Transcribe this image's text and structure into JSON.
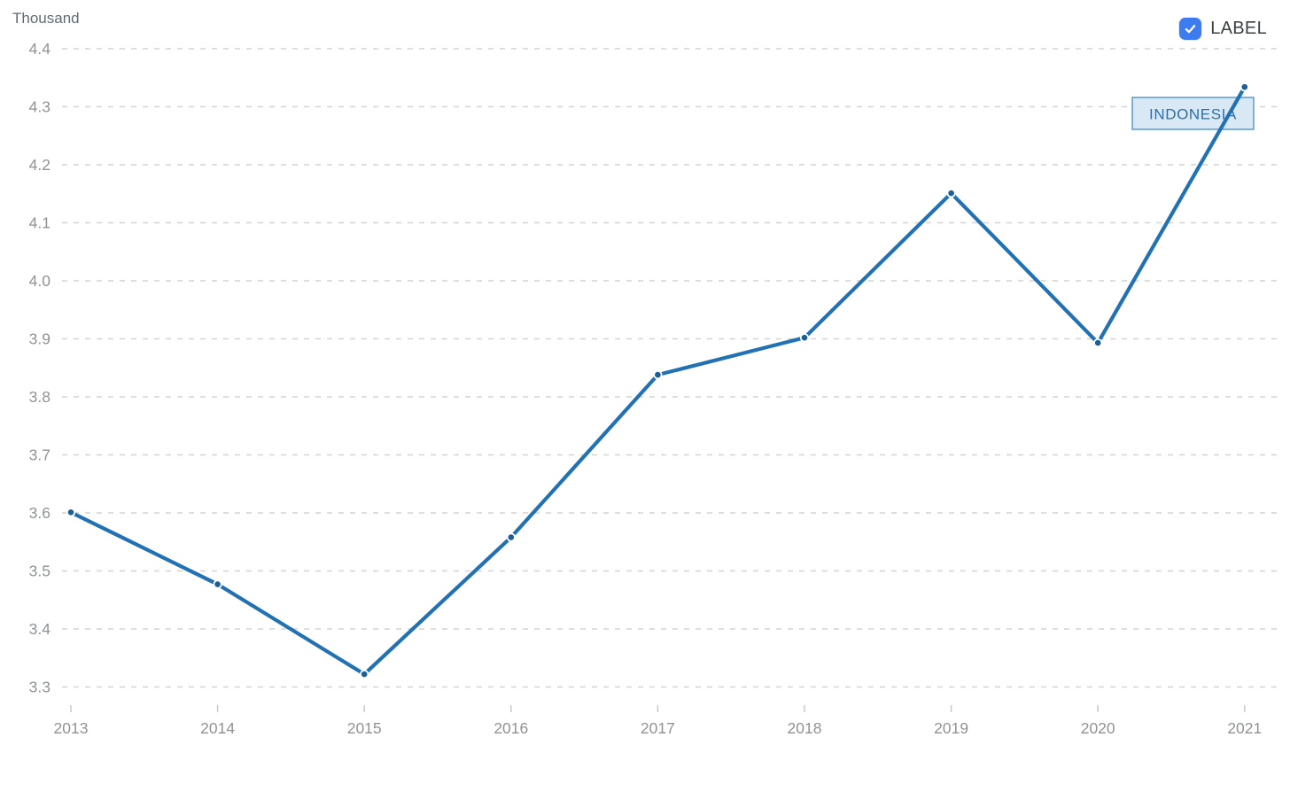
{
  "chart": {
    "unit_label": "Thousand",
    "legend": {
      "label": "LABEL",
      "checked": true
    },
    "series_label": "INDONESIA"
  },
  "chart_data": {
    "type": "line",
    "title": "",
    "xlabel": "",
    "ylabel": "Thousand",
    "x": [
      2013,
      2014,
      2015,
      2016,
      2017,
      2018,
      2019,
      2020,
      2021
    ],
    "series": [
      {
        "name": "INDONESIA",
        "values": [
          3.601,
          3.477,
          3.322,
          3.558,
          3.838,
          3.902,
          4.151,
          3.893,
          4.334
        ]
      }
    ],
    "ylim": [
      3.3,
      4.4
    ],
    "ytick_step": 0.1,
    "ytick_labels": [
      "3.3",
      "3.4",
      "3.5",
      "3.6",
      "3.7",
      "3.8",
      "3.9",
      "4.0",
      "4.1",
      "4.2",
      "4.3",
      "4.4"
    ],
    "grid": "horizontal-dashed",
    "legend_position": "top-right",
    "colors": {
      "line": "#2271b3",
      "point": "#1d5e98",
      "point_halo": "#ffffff",
      "gridline": "#d4d4d4",
      "tick": "#c6c6c6",
      "tick_text": "#8f9296",
      "series_box_bg": "#d8e8f5",
      "series_box_border": "#5b9bd1",
      "series_box_text": "#2e6ea5",
      "checkbox": "#3d7cf0"
    }
  }
}
